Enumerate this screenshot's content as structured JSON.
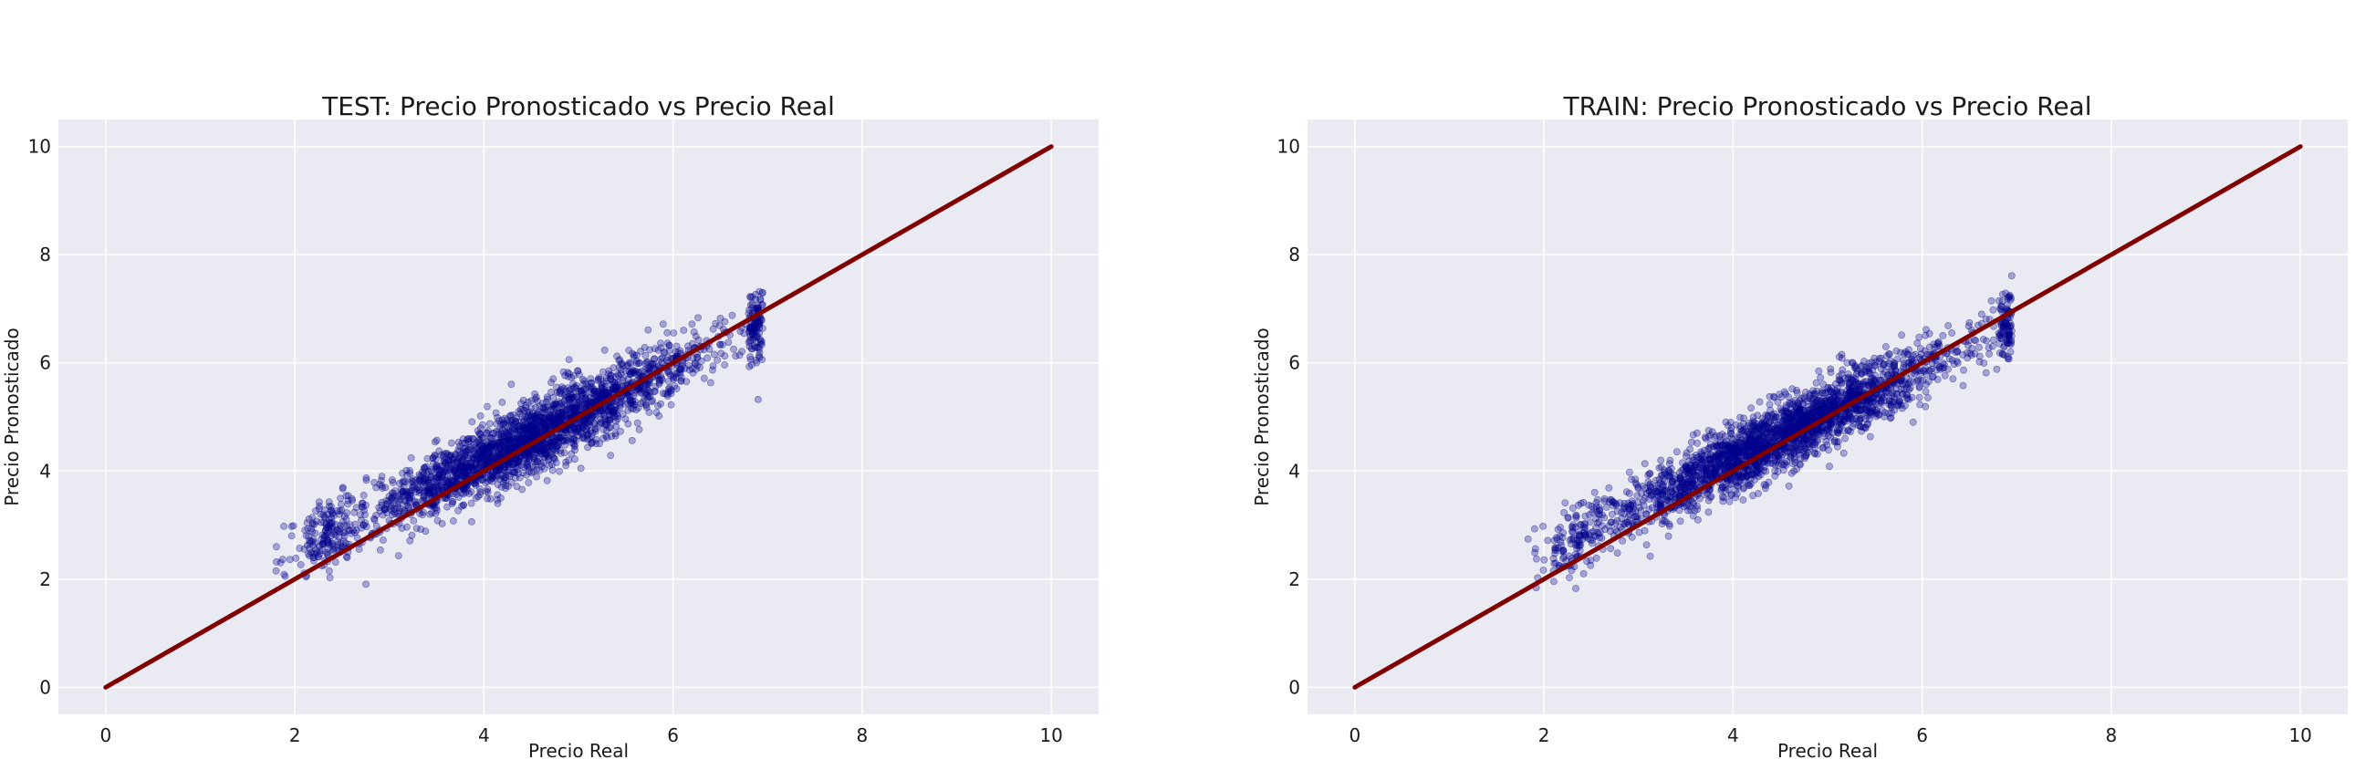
{
  "chart_data": [
    {
      "type": "scatter",
      "title": "TEST: Precio Pronosticado vs Precio Real",
      "xlabel": "Precio Real",
      "ylabel": "Precio Pronosticado",
      "xlim": [
        -0.5,
        10.5
      ],
      "ylim": [
        -0.5,
        10.5
      ],
      "xticks": [
        "0",
        "2",
        "4",
        "6",
        "8",
        "10"
      ],
      "yticks": [
        "0",
        "2",
        "4",
        "6",
        "8",
        "10"
      ],
      "grid": true,
      "background": "#eaeaf2",
      "point_color": "#00008b",
      "point_opacity": 0.3,
      "x_range": [
        1.8,
        6.95
      ],
      "scatter_trend": {
        "intercept": 0.8,
        "slope": 0.85
      },
      "series": [
        {
          "type": "line",
          "x": [
            0,
            10
          ],
          "y": [
            0,
            10
          ],
          "color": "#800000"
        }
      ]
    },
    {
      "type": "scatter",
      "title": "TRAIN: Precio Pronosticado vs Precio Real",
      "xlabel": "Precio Real",
      "ylabel": "Precio Pronosticado",
      "xlim": [
        -0.5,
        10.5
      ],
      "ylim": [
        -0.5,
        10.5
      ],
      "xticks": [
        "0",
        "2",
        "4",
        "6",
        "8",
        "10"
      ],
      "yticks": [
        "0",
        "2",
        "4",
        "6",
        "8",
        "10"
      ],
      "grid": true,
      "background": "#eaeaf2",
      "point_color": "#00008b",
      "point_opacity": 0.3,
      "x_range": [
        1.8,
        6.95
      ],
      "scatter_trend": {
        "intercept": 0.8,
        "slope": 0.85
      },
      "series": [
        {
          "type": "line",
          "x": [
            0,
            10
          ],
          "y": [
            0,
            10
          ],
          "color": "#800000"
        }
      ]
    }
  ]
}
